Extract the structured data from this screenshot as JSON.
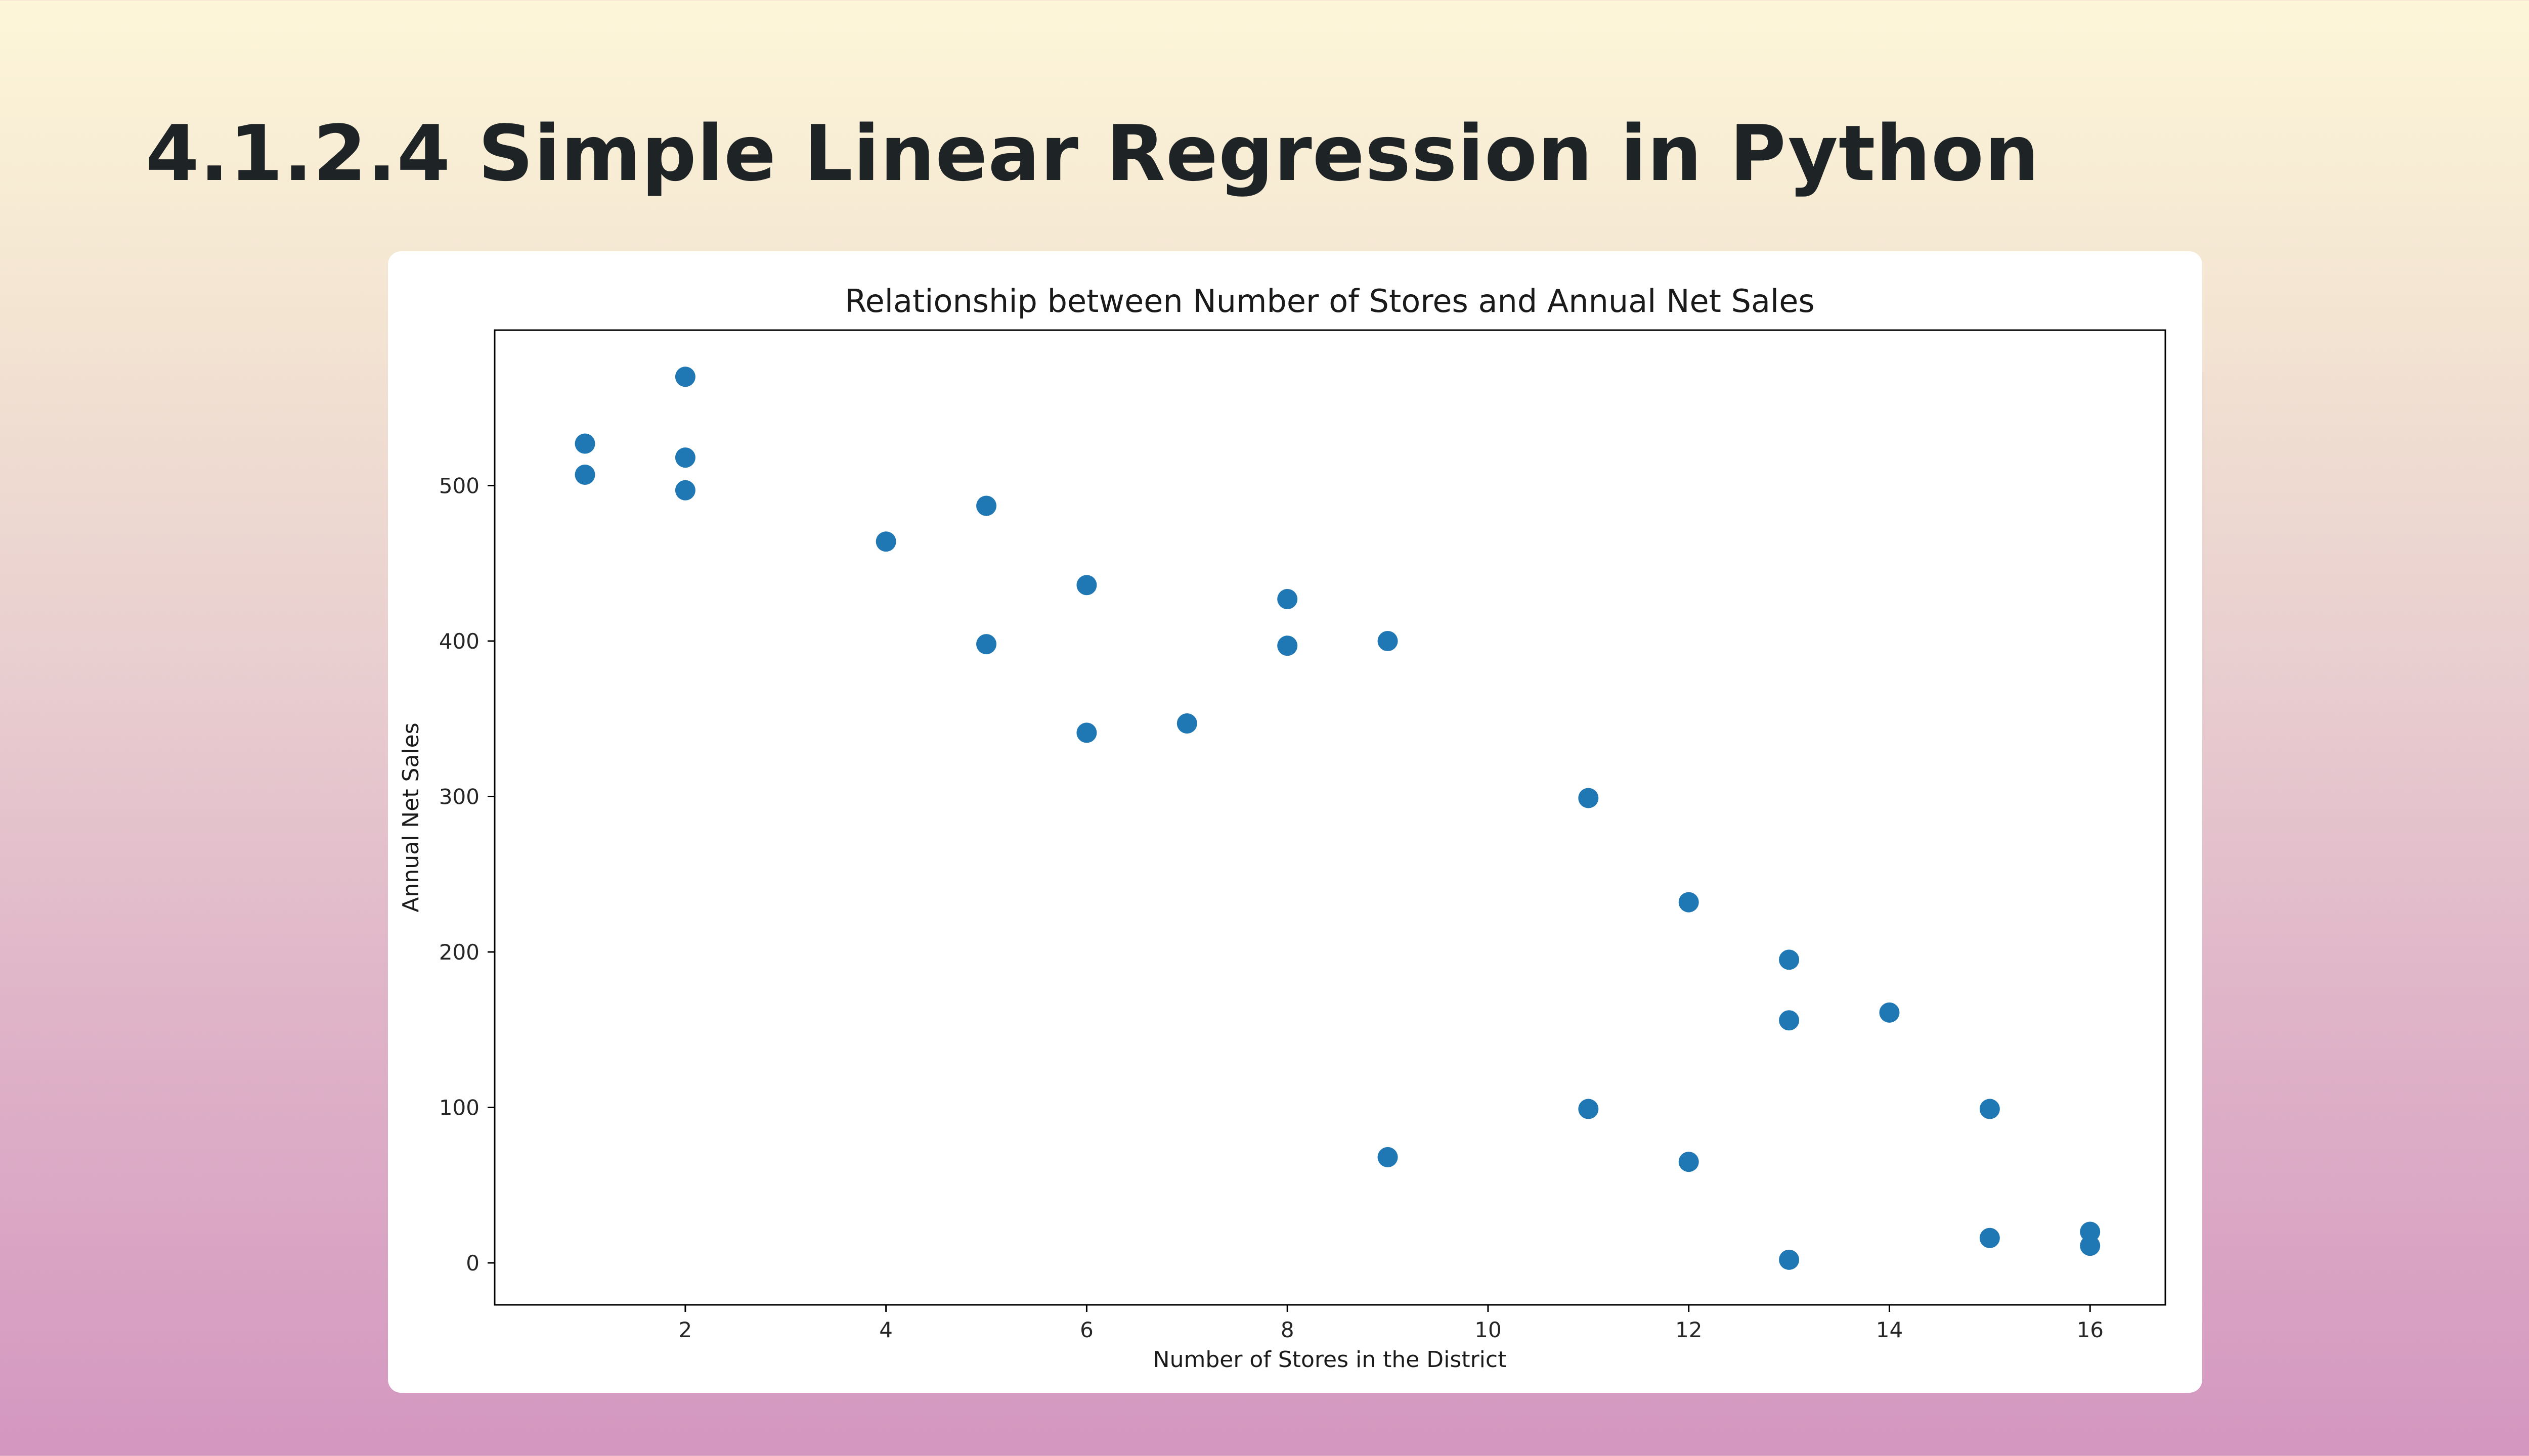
{
  "slide": {
    "title": "4.1.2.4 Simple Linear Regression in Python"
  },
  "colors": {
    "marker": "#1f77b4",
    "axis": "#000000",
    "text": "#262626"
  },
  "chart_data": {
    "type": "scatter",
    "title": "Relationship between Number of Stores and Annual Net Sales",
    "xlabel": "Number of Stores in the District",
    "ylabel": "Annual Net Sales",
    "xlim": [
      0.1,
      16.75
    ],
    "ylim": [
      -27,
      600
    ],
    "xticks": [
      2,
      4,
      6,
      8,
      10,
      12,
      14,
      16
    ],
    "yticks": [
      0,
      100,
      200,
      300,
      400,
      500
    ],
    "grid": false,
    "legend": "none",
    "points": [
      {
        "x": 1,
        "y": 527
      },
      {
        "x": 1,
        "y": 507
      },
      {
        "x": 2,
        "y": 570
      },
      {
        "x": 2,
        "y": 518
      },
      {
        "x": 2,
        "y": 497
      },
      {
        "x": 4,
        "y": 464
      },
      {
        "x": 5,
        "y": 487
      },
      {
        "x": 5,
        "y": 398
      },
      {
        "x": 6,
        "y": 436
      },
      {
        "x": 6,
        "y": 341
      },
      {
        "x": 7,
        "y": 347
      },
      {
        "x": 8,
        "y": 427
      },
      {
        "x": 8,
        "y": 397
      },
      {
        "x": 9,
        "y": 400
      },
      {
        "x": 9,
        "y": 68
      },
      {
        "x": 11,
        "y": 299
      },
      {
        "x": 11,
        "y": 99
      },
      {
        "x": 12,
        "y": 232
      },
      {
        "x": 12,
        "y": 65
      },
      {
        "x": 13,
        "y": 195
      },
      {
        "x": 13,
        "y": 156
      },
      {
        "x": 13,
        "y": 2
      },
      {
        "x": 14,
        "y": 161
      },
      {
        "x": 15,
        "y": 99
      },
      {
        "x": 15,
        "y": 16
      },
      {
        "x": 16,
        "y": 20
      },
      {
        "x": 16,
        "y": 11
      }
    ]
  }
}
